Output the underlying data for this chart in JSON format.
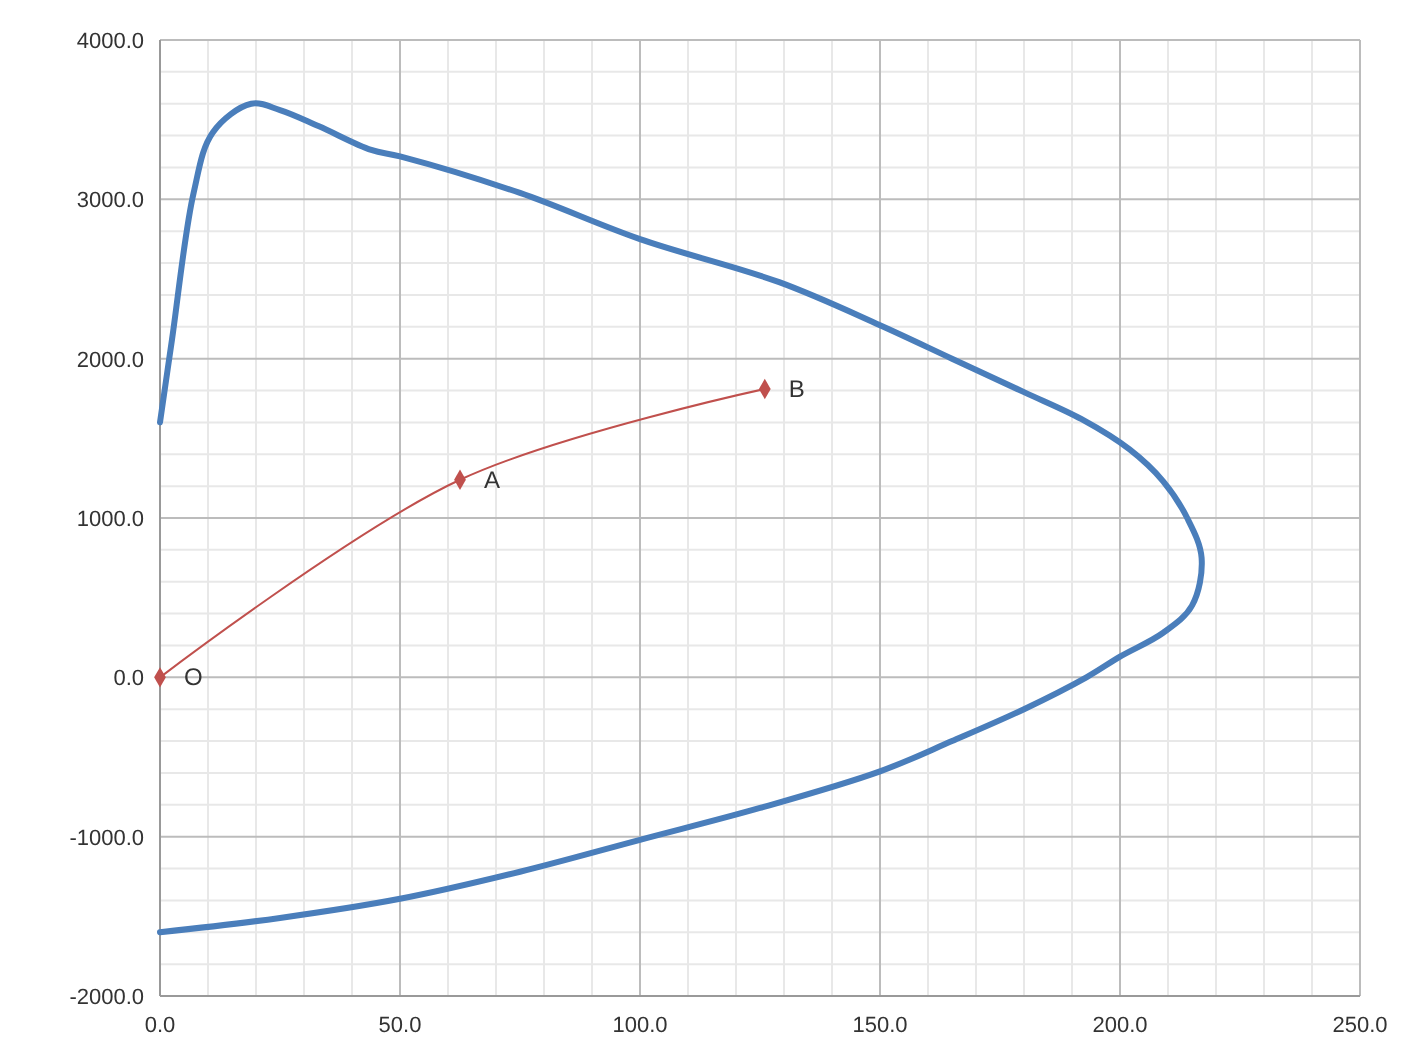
{
  "chart_data": {
    "type": "line",
    "xlim": [
      0,
      250
    ],
    "ylim": [
      -2000,
      4000
    ],
    "xticks": [
      {
        "value": 0,
        "label": "0.0"
      },
      {
        "value": 50,
        "label": "50.0"
      },
      {
        "value": 100,
        "label": "100.0"
      },
      {
        "value": 150,
        "label": "150.0"
      },
      {
        "value": 200,
        "label": "200.0"
      },
      {
        "value": 250,
        "label": "250.0"
      }
    ],
    "yticks": [
      {
        "value": -2000,
        "label": "-2000.0"
      },
      {
        "value": -1000,
        "label": "-1000.0"
      },
      {
        "value": 0,
        "label": "0.0"
      },
      {
        "value": 1000,
        "label": "1000.0"
      },
      {
        "value": 2000,
        "label": "2000.0"
      },
      {
        "value": 3000,
        "label": "3000.0"
      },
      {
        "value": 4000,
        "label": "4000.0"
      }
    ],
    "grid": true,
    "series": [
      {
        "color": "#4a7ebb",
        "marker": "none",
        "x": [
          0,
          2.5,
          7,
          11,
          19,
          25,
          33,
          44,
          50,
          75,
          100,
          129,
          150,
          165,
          180,
          192,
          202,
          209,
          214,
          217,
          215,
          209,
          200,
          193,
          180,
          165,
          150,
          125,
          100,
          75,
          50,
          25,
          0
        ],
        "values": [
          1600,
          2120,
          3040,
          3420,
          3600,
          3560,
          3460,
          3310,
          3270,
          3040,
          2750,
          2480,
          2210,
          2000,
          1790,
          1620,
          1430,
          1230,
          1000,
          750,
          450,
          280,
          130,
          0,
          -200,
          -400,
          -590,
          -820,
          -1020,
          -1220,
          -1390,
          -1510,
          -1600
        ]
      },
      {
        "color": "#c0504d",
        "marker": "diamond",
        "x": [
          0,
          62.5,
          126
        ],
        "values": [
          0,
          1240,
          1810
        ]
      }
    ],
    "annotations": [
      {
        "text": "O",
        "x": 0,
        "y": 0
      },
      {
        "text": "A",
        "x": 62.5,
        "y": 1240
      },
      {
        "text": "B",
        "x": 126,
        "y": 1810
      }
    ]
  }
}
